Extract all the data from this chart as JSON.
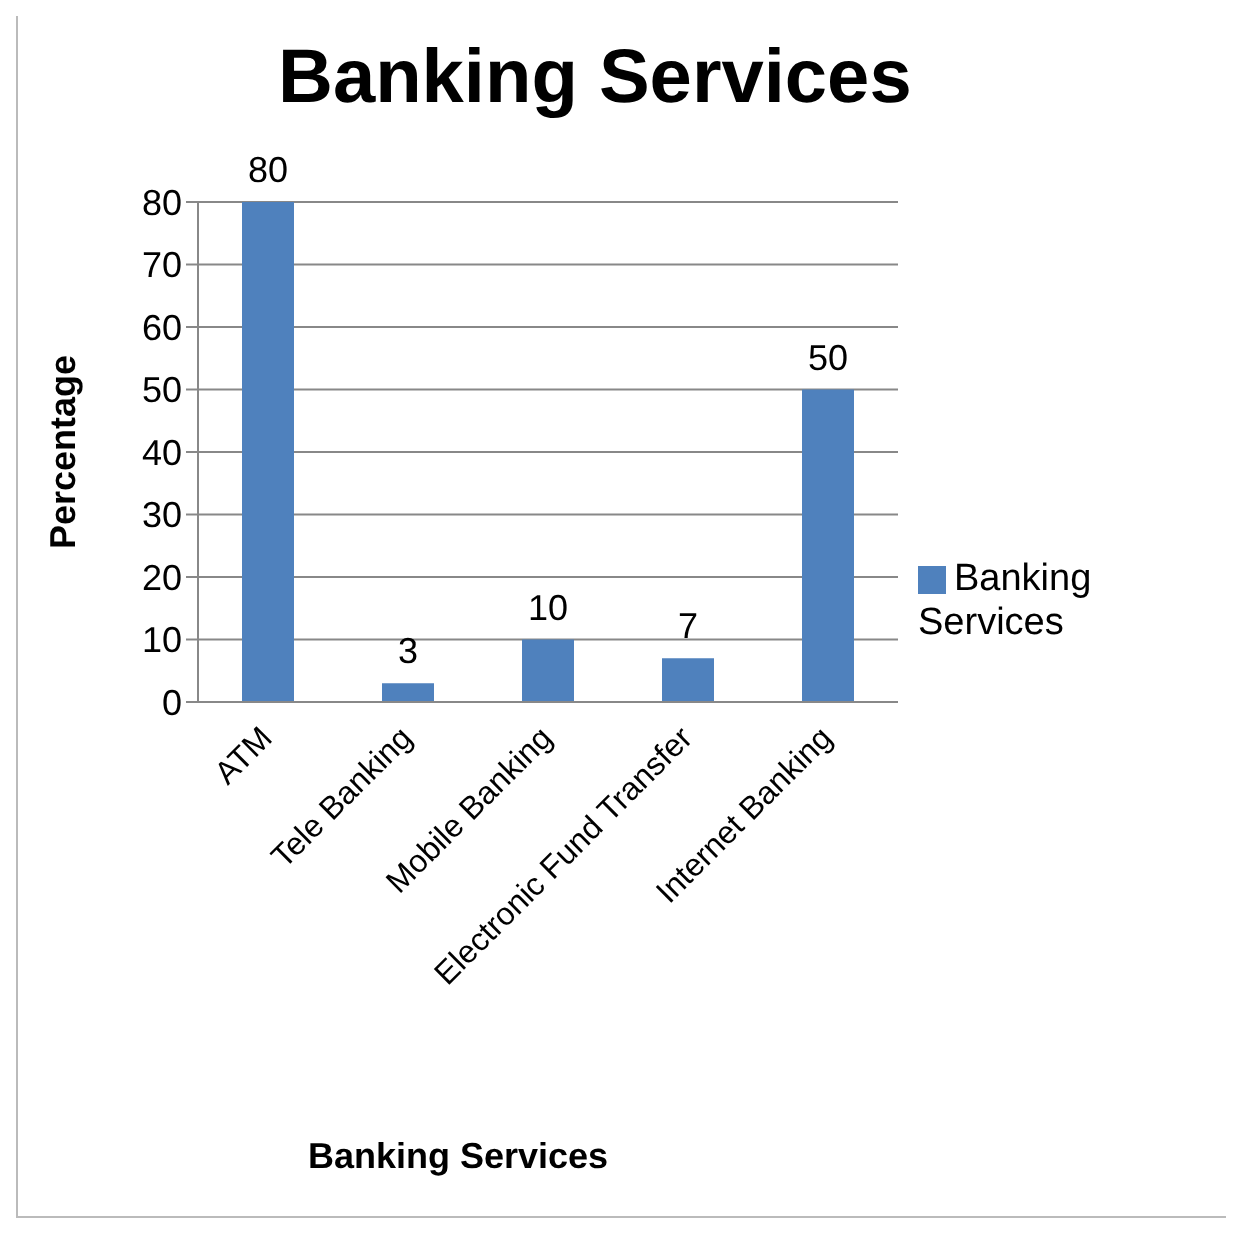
{
  "chart_data": {
    "type": "bar",
    "title": "Banking Services",
    "xlabel": "Banking Services",
    "ylabel": "Percentage",
    "categories": [
      "ATM",
      "Tele Banking",
      "Mobile Banking",
      "Electronic Fund Transfer",
      "Internet Banking"
    ],
    "series": [
      {
        "name": "Banking Services",
        "color": "#4f81bd",
        "values": [
          80,
          3,
          10,
          7,
          50
        ]
      }
    ],
    "ylim": [
      0,
      80
    ],
    "yticks": [
      0,
      10,
      20,
      30,
      40,
      50,
      60,
      70,
      80
    ],
    "grid": "y",
    "legend": "right",
    "data_labels": true
  }
}
